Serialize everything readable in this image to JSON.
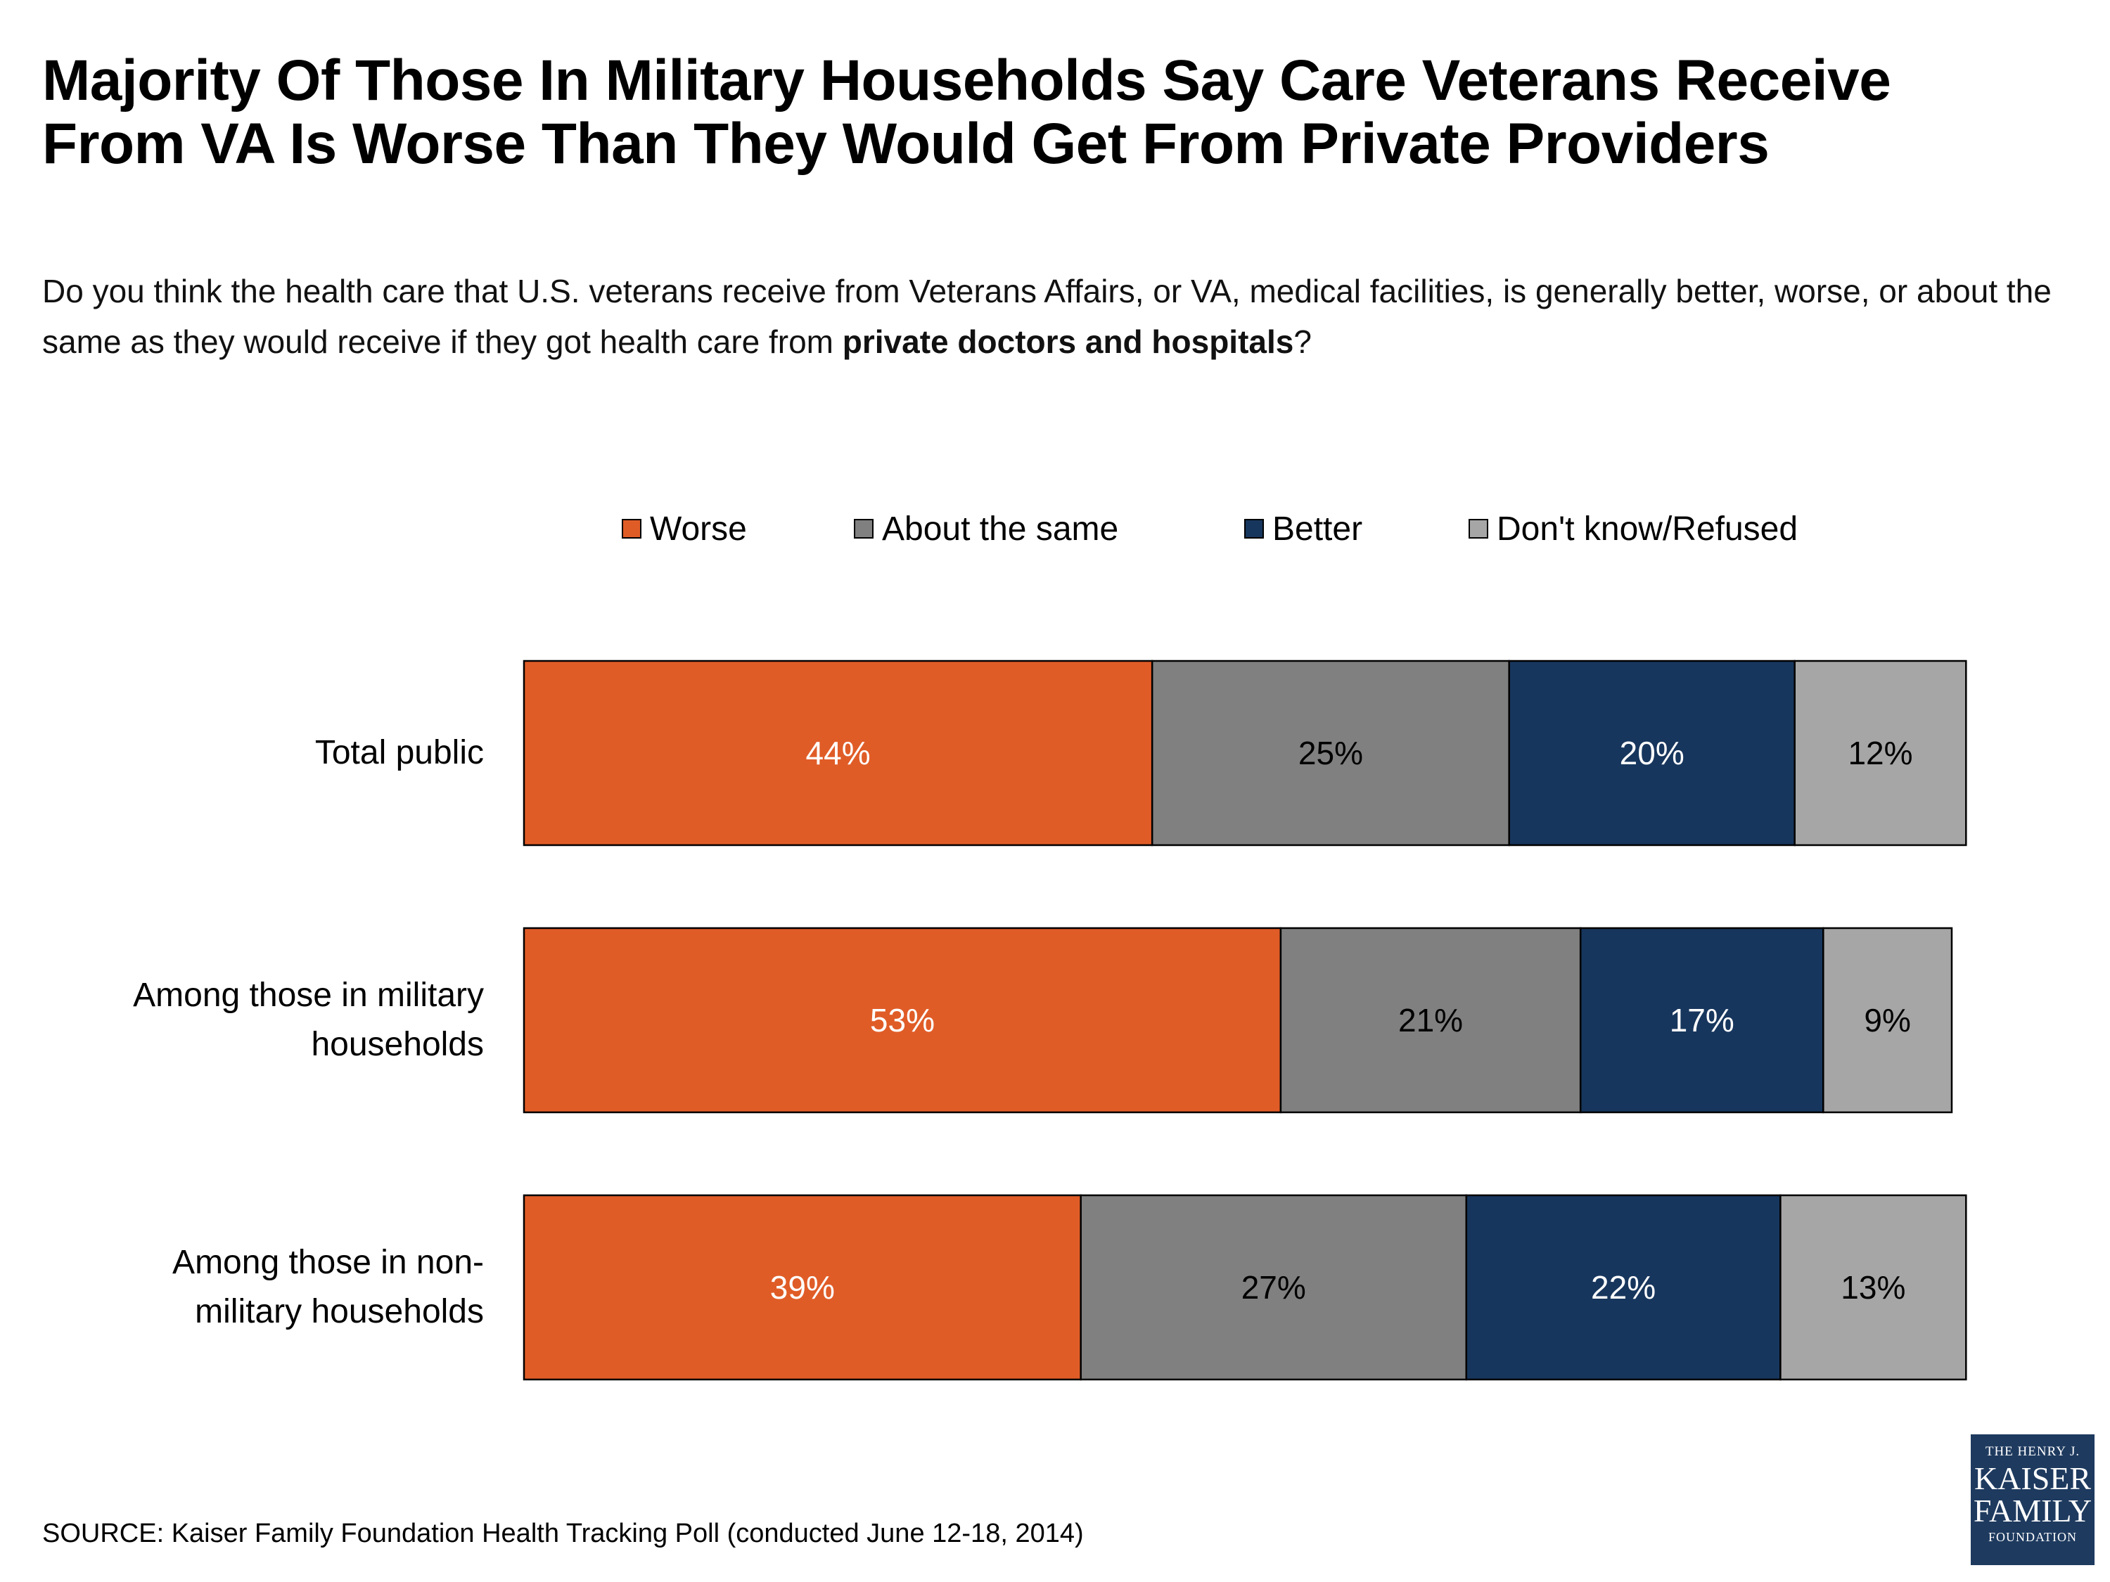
{
  "title": {
    "line1": "Majority Of Those In Military Households Say Care Veterans Receive",
    "line2": "From VA Is Worse Than They Would Get From Private Providers"
  },
  "question": {
    "text": "Do you think the health care that U.S. veterans receive from Veterans Affairs, or VA, medical facilities, is generally better, worse, or about the same as they would receive if they got health care from ",
    "bold": "private doctors and hospitals",
    "end": "?"
  },
  "chart_data": {
    "type": "bar",
    "orientation": "horizontal",
    "stacked": true,
    "categories": [
      "Total public",
      "Among those in military households",
      "Among those in non-military households"
    ],
    "category_display": [
      [
        "Total public"
      ],
      [
        "Among those in military",
        "households"
      ],
      [
        "Among those in non-",
        "military households"
      ]
    ],
    "series": [
      {
        "name": "Worse",
        "values": [
          44,
          53,
          39
        ],
        "labels": [
          "44%",
          "53%",
          "39%"
        ],
        "color": "#e05c27",
        "label_color": "#ffffff"
      },
      {
        "name": "About the same",
        "values": [
          25,
          21,
          27
        ],
        "labels": [
          "25%",
          "21%",
          "27%"
        ],
        "color": "#808080",
        "label_color": "#000000"
      },
      {
        "name": "Better",
        "values": [
          20,
          17,
          22
        ],
        "labels": [
          "20%",
          "17%",
          "22%"
        ],
        "color": "#17365d",
        "label_color": "#ffffff"
      },
      {
        "name": "Don't know/Refused",
        "values": [
          12,
          9,
          13
        ],
        "labels": [
          "12%",
          "9%",
          "13%"
        ],
        "color": "#a6a6a6",
        "label_color": "#000000"
      }
    ],
    "legend_position": "top",
    "grid": false
  },
  "source": "SOURCE: Kaiser Family Foundation Health Tracking Poll (conducted June 12-18, 2014)",
  "logo": {
    "line1": "THE HENRY J.",
    "line2": "KAISER",
    "line3": "FAMILY",
    "line4": "FOUNDATION"
  }
}
